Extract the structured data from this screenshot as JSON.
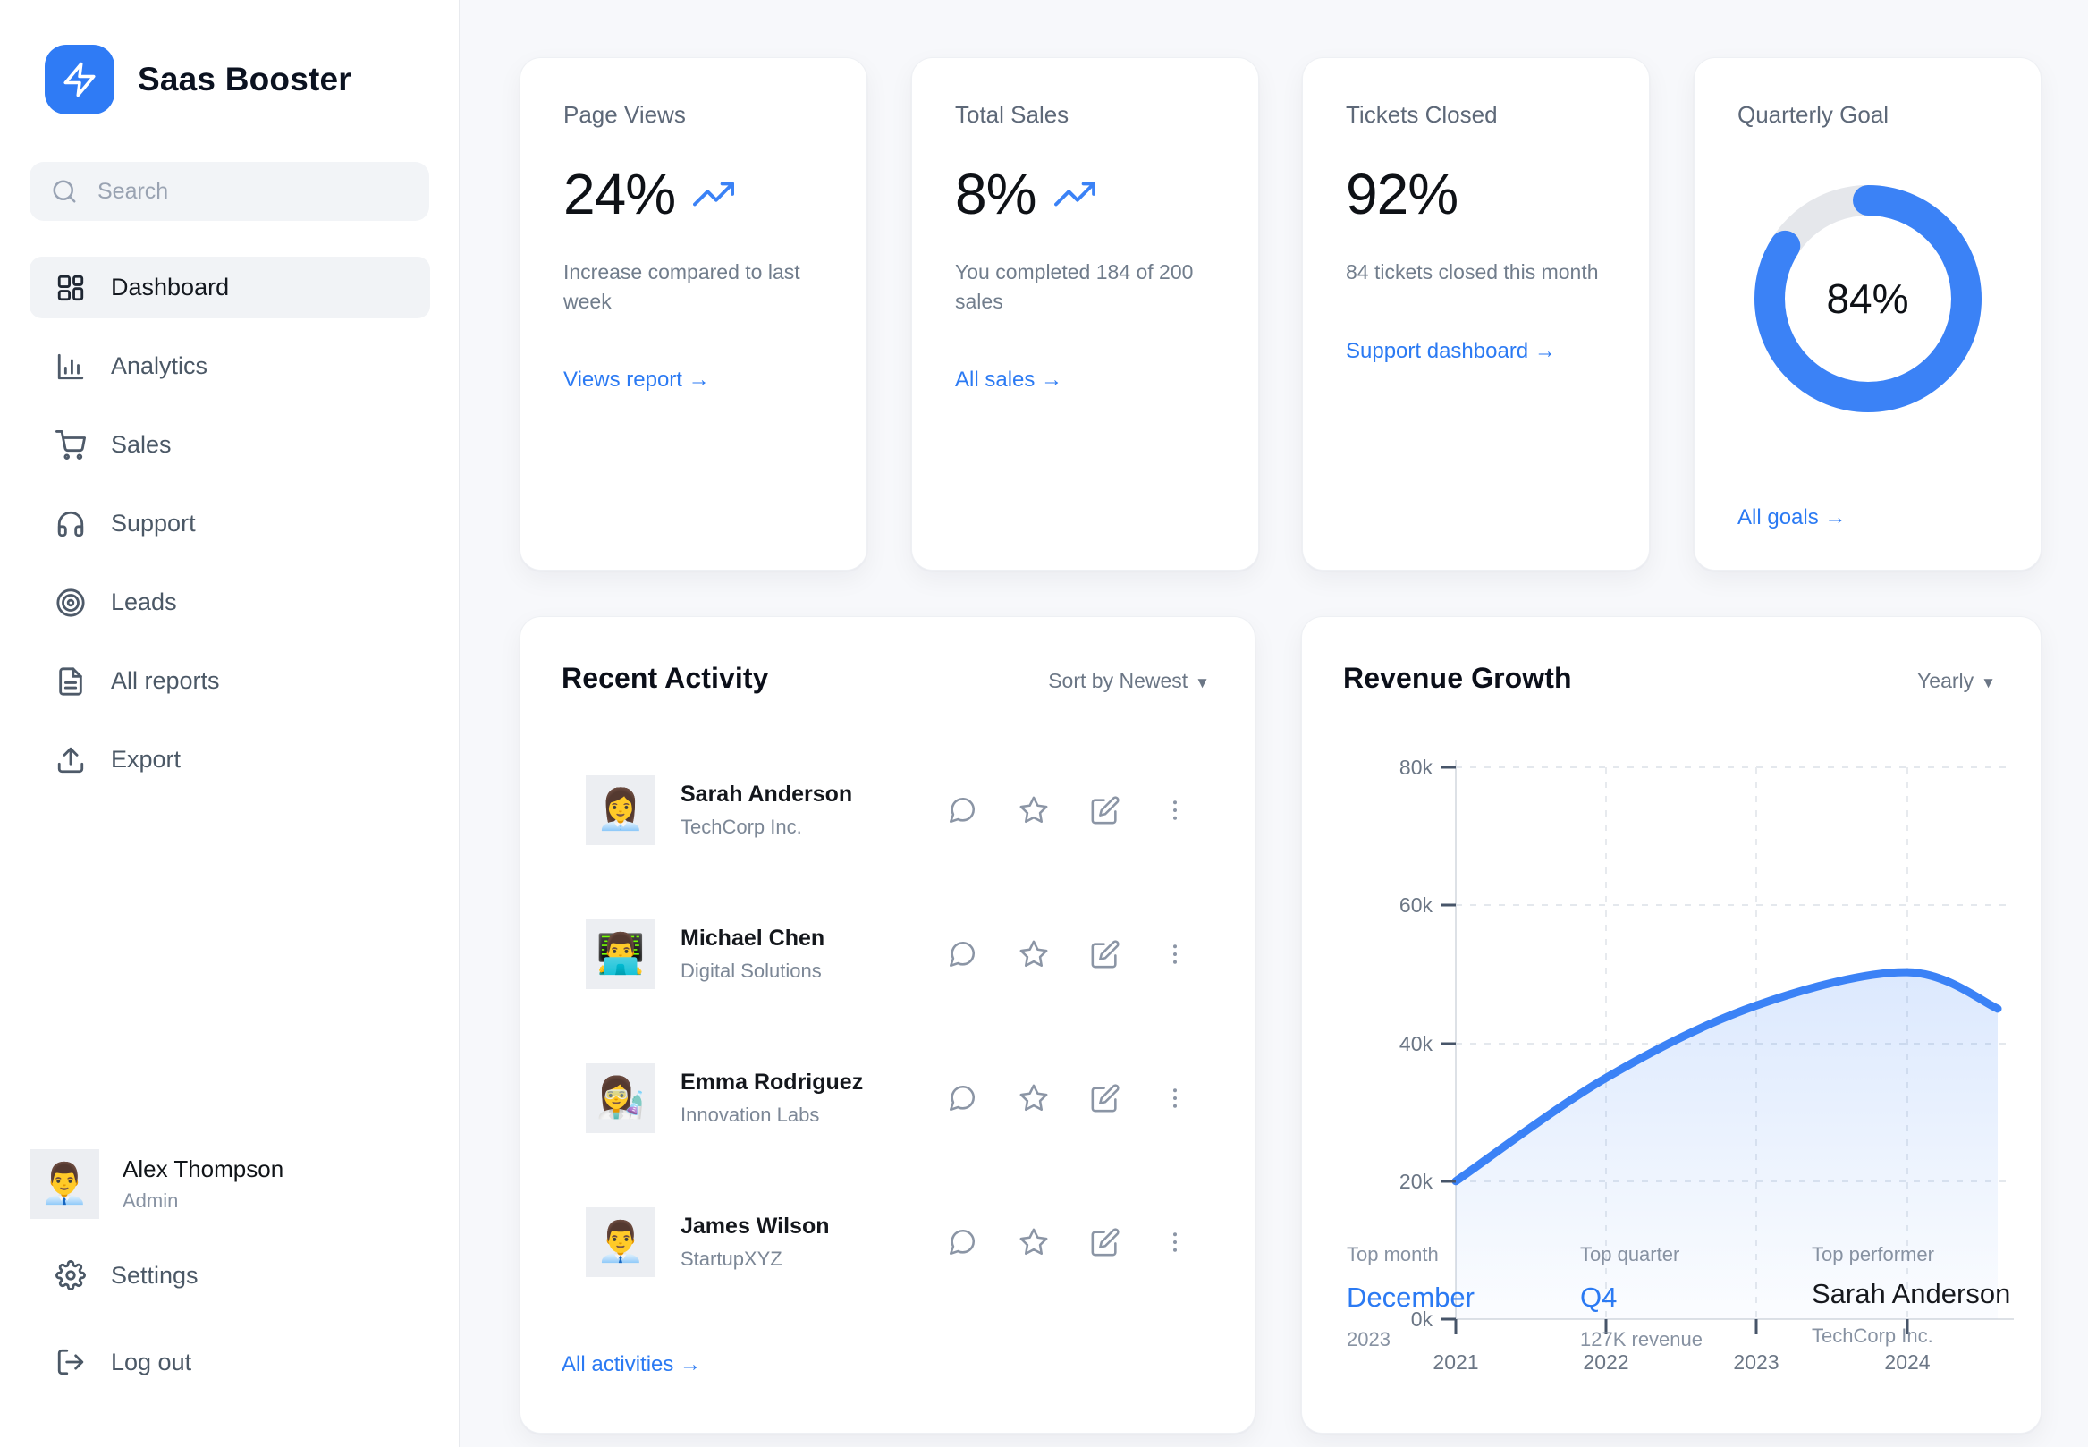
{
  "app": {
    "name": "Saas Booster"
  },
  "sidebar": {
    "search": {
      "placeholder": "Search"
    },
    "nav": [
      {
        "label": "Dashboard",
        "icon": "dashboard-grid-icon",
        "active": true
      },
      {
        "label": "Analytics",
        "icon": "bar-chart-icon",
        "active": false
      },
      {
        "label": "Sales",
        "icon": "shopping-cart-icon",
        "active": false
      },
      {
        "label": "Support",
        "icon": "headphones-icon",
        "active": false
      },
      {
        "label": "Leads",
        "icon": "target-icon",
        "active": false
      },
      {
        "label": "All reports",
        "icon": "file-text-icon",
        "active": false
      },
      {
        "label": "Export",
        "icon": "upload-icon",
        "active": false
      }
    ],
    "user": {
      "name": "Alex Thompson",
      "role": "Admin",
      "avatar": "👨‍💼"
    },
    "footer": [
      {
        "label": "Settings",
        "icon": "gear-icon"
      },
      {
        "label": "Log out",
        "icon": "logout-icon"
      }
    ]
  },
  "stats": [
    {
      "title": "Page Views",
      "value": "24%",
      "trend": "up",
      "description": "Increase compared to last week",
      "link": "Views report →"
    },
    {
      "title": "Total Sales",
      "value": "8%",
      "trend": "up",
      "description": "You completed 184 of 200 sales",
      "link": "All sales →"
    },
    {
      "title": "Tickets Closed",
      "value": "92%",
      "trend": null,
      "description": "84 tickets closed this month",
      "link": "Support dashboard →"
    }
  ],
  "quarterly_goal": {
    "title": "Quarterly Goal",
    "percent": 84,
    "label": "84%",
    "link": "All goals →",
    "ring_color": "#3b82f6",
    "track_color": "#e5e7eb"
  },
  "activity": {
    "title": "Recent Activity",
    "sort_label": "Sort by Newest",
    "caret": "▼",
    "actions": [
      "comment",
      "star",
      "edit",
      "more"
    ],
    "rows": [
      {
        "name": "Sarah Anderson",
        "company": "TechCorp Inc.",
        "avatar": "👩‍💼"
      },
      {
        "name": "Michael Chen",
        "company": "Digital Solutions",
        "avatar": "👨‍💻"
      },
      {
        "name": "Emma Rodriguez",
        "company": "Innovation Labs",
        "avatar": "👩‍🔬"
      },
      {
        "name": "James Wilson",
        "company": "StartupXYZ",
        "avatar": "👨‍💼"
      }
    ],
    "link": "All activities →"
  },
  "revenue": {
    "title": "Revenue Growth",
    "range_label": "Yearly",
    "caret": "▼",
    "footer": [
      {
        "label": "Top month",
        "value": "December",
        "sub": "2023"
      },
      {
        "label": "Top quarter",
        "value": "Q4",
        "sub": "127K revenue"
      },
      {
        "label": "Top performer",
        "value": "Sarah Anderson",
        "sub": "TechCorp Inc."
      }
    ]
  },
  "chart_data": {
    "type": "area",
    "title": "Revenue Growth",
    "series_name": "Revenue",
    "x": [
      2021,
      2022,
      2023,
      2024,
      2024.6
    ],
    "values": [
      20000,
      35000,
      45500,
      50300,
      45000
    ],
    "xlim": [
      2021,
      2024.6
    ],
    "ylim": [
      0,
      80000
    ],
    "xtick_labels": [
      "2021",
      "2022",
      "2023",
      "2024"
    ],
    "ytick_labels": [
      "0k",
      "20k",
      "40k",
      "60k",
      "80k"
    ],
    "grid": "dashed",
    "legend": false,
    "line_color": "#3b82f6",
    "fill_color": "rgba(59,130,246,0.16)"
  }
}
